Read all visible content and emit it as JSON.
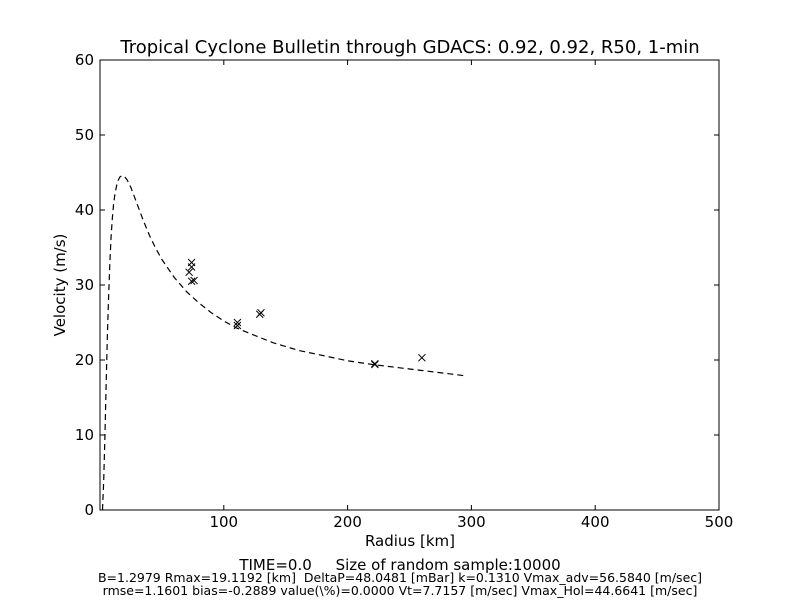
{
  "chart_data": {
    "type": "line+scatter",
    "title": "Tropical Cyclone Bulletin through GDACS: 0.92, 0.92, R50, 1-min",
    "xlabel": "Radius [km]",
    "ylabel": "Velocity (m/s)",
    "xlim": [
      0,
      500
    ],
    "ylim": [
      0,
      60
    ],
    "xticks": [
      100,
      200,
      300,
      400,
      500
    ],
    "yticks": [
      0,
      10,
      20,
      30,
      40,
      50,
      60
    ],
    "grid": false,
    "series": [
      {
        "style": "dashed-line",
        "color": "#000000",
        "x": [
          2,
          3,
          4,
          5,
          6,
          7,
          8,
          9,
          10,
          11,
          12,
          14,
          16,
          18,
          20,
          22,
          25,
          30,
          35,
          40,
          45,
          50,
          60,
          70,
          80,
          90,
          100,
          110,
          120,
          140,
          160,
          180,
          200,
          220,
          240,
          260,
          280,
          295
        ],
        "y": [
          0.0,
          3.9,
          10.2,
          17.0,
          23.4,
          28.8,
          33.1,
          36.5,
          39.0,
          40.8,
          42.1,
          43.7,
          44.4,
          44.6,
          44.4,
          44.0,
          43.0,
          40.8,
          38.6,
          36.6,
          34.9,
          33.4,
          31.0,
          29.1,
          27.6,
          26.3,
          25.2,
          24.3,
          23.6,
          22.3,
          21.3,
          20.6,
          19.9,
          19.4,
          19.0,
          18.6,
          18.2,
          17.9
        ]
      },
      {
        "style": "x-markers",
        "color": "#000000",
        "x": [
          74,
          74,
          72,
          74,
          76,
          111,
          111,
          129,
          130,
          222,
          222,
          260
        ],
        "y": [
          33.0,
          32.4,
          31.7,
          30.5,
          30.6,
          25.0,
          24.6,
          26.1,
          26.3,
          19.4,
          19.5,
          20.3
        ]
      }
    ]
  },
  "footer": {
    "line1": "TIME=0.0     Size of random sample:10000",
    "line2": "B=1.2979 Rmax=19.1192 [km]  DeltaP=48.0481 [mBar] k=0.1310 Vmax_adv=56.5840 [m/sec]",
    "line3": "rmse=1.1601 bias=-0.2889 value(\\%)=0.0000 Vt=7.7157 [m/sec] Vmax_Hol=44.6641 [m/sec]"
  }
}
